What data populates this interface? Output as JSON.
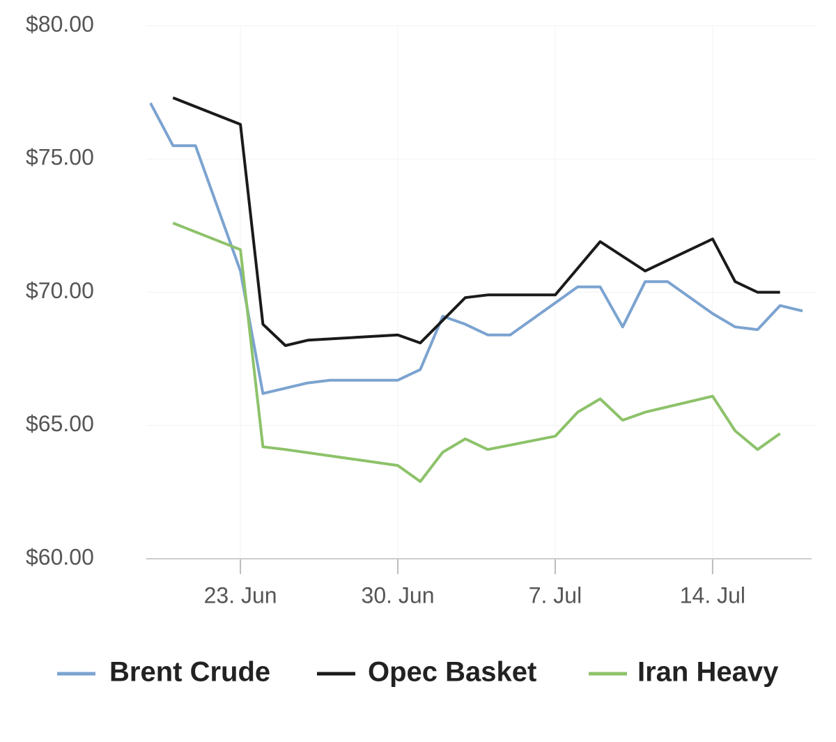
{
  "chart_data": {
    "type": "line",
    "xlim": [
      "06-19",
      "07-18"
    ],
    "xticks": [
      {
        "value": "06-23",
        "label": "23. Jun"
      },
      {
        "value": "06-30",
        "label": "30. Jun"
      },
      {
        "value": "07-07",
        "label": "7. Jul"
      },
      {
        "value": "07-14",
        "label": "14. Jul"
      }
    ],
    "ylim": [
      60,
      80
    ],
    "yticks": [
      {
        "value": 60,
        "label": "$60.00"
      },
      {
        "value": 65,
        "label": "$65.00"
      },
      {
        "value": 70,
        "label": "$70.00"
      },
      {
        "value": 75,
        "label": "$75.00"
      },
      {
        "value": 80,
        "label": "$80.00"
      }
    ],
    "grid": true,
    "legend": "bottom",
    "series": [
      {
        "name": "Brent Crude",
        "color": "#7ba3d0",
        "x": [
          "06-19",
          "06-20",
          "06-21",
          "06-23",
          "06-24",
          "06-26",
          "06-27",
          "06-30",
          "07-01",
          "07-02",
          "07-03",
          "07-04",
          "07-05",
          "07-07",
          "07-08",
          "07-09",
          "07-10",
          "07-11",
          "07-12",
          "07-14",
          "07-15",
          "07-16",
          "07-17",
          "07-18"
        ],
        "values": [
          77.1,
          75.5,
          75.5,
          70.8,
          66.2,
          66.6,
          66.7,
          66.7,
          67.1,
          69.1,
          68.8,
          68.4,
          68.4,
          69.6,
          70.2,
          70.2,
          68.7,
          70.4,
          70.4,
          69.2,
          68.7,
          68.6,
          69.5,
          69.3
        ]
      },
      {
        "name": "Opec Basket",
        "color": "#1a1a1a",
        "x": [
          "06-20",
          "06-23",
          "06-24",
          "06-25",
          "06-26",
          "06-30",
          "07-01",
          "07-03",
          "07-04",
          "07-07",
          "07-09",
          "07-11",
          "07-14",
          "07-15",
          "07-16",
          "07-17"
        ],
        "values": [
          77.3,
          76.3,
          68.8,
          68.0,
          68.2,
          68.4,
          68.1,
          69.8,
          69.9,
          69.9,
          71.9,
          70.8,
          72.0,
          70.4,
          70.0,
          70.0
        ]
      },
      {
        "name": "Iran Heavy",
        "color": "#8dc26a",
        "x": [
          "06-20",
          "06-23",
          "06-24",
          "06-25",
          "06-30",
          "07-01",
          "07-02",
          "07-03",
          "07-04",
          "07-07",
          "07-08",
          "07-09",
          "07-10",
          "07-11",
          "07-14",
          "07-15",
          "07-16",
          "07-17"
        ],
        "values": [
          72.6,
          71.6,
          64.2,
          64.1,
          63.5,
          62.9,
          64.0,
          64.5,
          64.1,
          64.6,
          65.5,
          66.0,
          65.2,
          65.5,
          66.1,
          64.8,
          64.1,
          64.7
        ]
      }
    ]
  }
}
